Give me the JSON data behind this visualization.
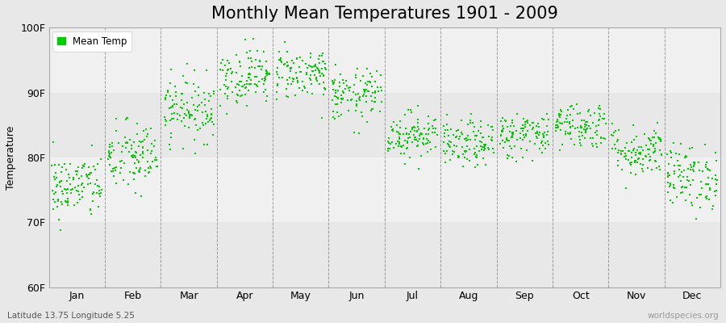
{
  "title": "Monthly Mean Temperatures 1901 - 2009",
  "ylabel": "Temperature",
  "xlabel_labels": [
    "Jan",
    "Feb",
    "Mar",
    "Apr",
    "May",
    "Jun",
    "Jul",
    "Aug",
    "Sep",
    "Oct",
    "Nov",
    "Dec"
  ],
  "subtitle": "Latitude 13.75 Longitude 5.25",
  "watermark": "worldspecies.org",
  "ylim": [
    60,
    100
  ],
  "yticks": [
    60,
    70,
    80,
    90,
    100
  ],
  "ytick_labels": [
    "60F",
    "70F",
    "80F",
    "90F",
    "100F"
  ],
  "dot_color": "#00CC00",
  "dot_size": 2.5,
  "background_color": "#E8E8E8",
  "band_color_light": "#F0F0F0",
  "band_color_dark": "#E0E0E0",
  "title_fontsize": 15,
  "axis_label_fontsize": 9,
  "tick_fontsize": 9,
  "legend_label": "Mean Temp",
  "num_years": 109,
  "monthly_means": [
    75.5,
    80.0,
    87.5,
    92.5,
    93.0,
    89.5,
    83.5,
    82.0,
    83.5,
    85.0,
    81.0,
    77.0
  ],
  "monthly_stds": [
    2.5,
    2.8,
    2.5,
    2.2,
    2.0,
    2.0,
    1.8,
    1.8,
    1.8,
    1.8,
    2.0,
    2.5
  ]
}
